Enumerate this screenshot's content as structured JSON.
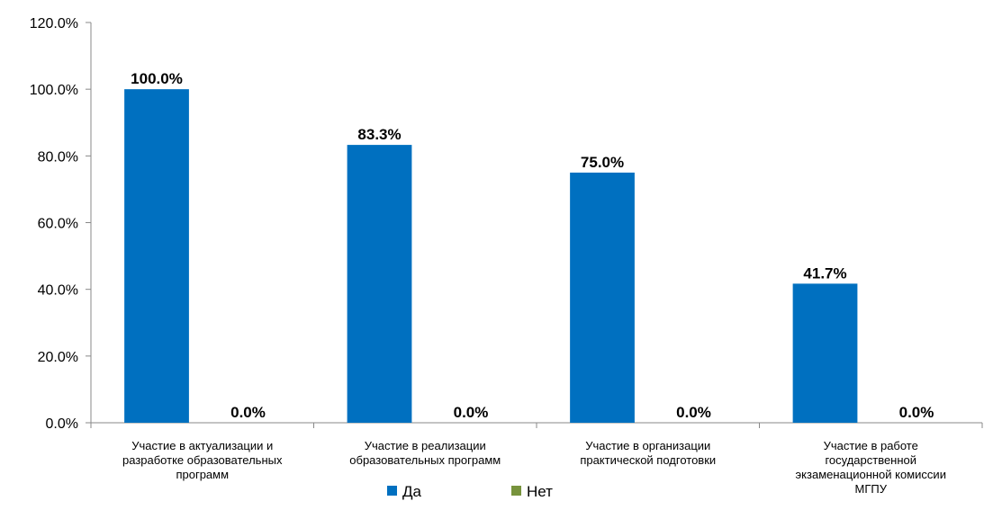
{
  "chart_data": {
    "type": "bar",
    "categories": [
      [
        "Участие в актуализации и",
        "разработке образовательных",
        "программ"
      ],
      [
        "Участие в реализации",
        "образовательных программ"
      ],
      [
        "Участие в организации",
        "практической подготовки"
      ],
      [
        "Участие в работе",
        "государственной",
        "экзаменационной комиссии",
        "МГПУ"
      ]
    ],
    "series": [
      {
        "name": "Да",
        "values": [
          100.0,
          83.3,
          75.0,
          41.7
        ],
        "color": "#0070C0"
      },
      {
        "name": "Нет",
        "values": [
          0.0,
          0.0,
          0.0,
          0.0
        ],
        "color": "#77933C"
      }
    ],
    "ylim": [
      0,
      120
    ],
    "yticks": [
      0,
      20,
      40,
      60,
      80,
      100,
      120
    ],
    "value_format": "0.0%",
    "legend_position": "bottom",
    "grid": false
  }
}
